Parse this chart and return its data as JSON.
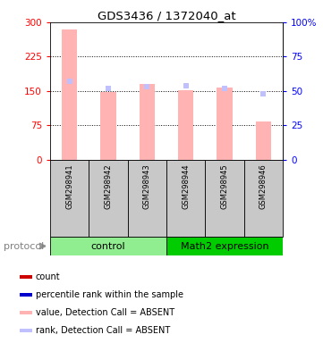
{
  "title": "GDS3436 / 1372040_at",
  "samples": [
    "GSM298941",
    "GSM298942",
    "GSM298943",
    "GSM298944",
    "GSM298945",
    "GSM298946"
  ],
  "bar_values": [
    285,
    147,
    165,
    152,
    157,
    83
  ],
  "rank_values": [
    57,
    52,
    53,
    54,
    52,
    48
  ],
  "bar_color_absent": "#FFB3B3",
  "rank_color_absent": "#C0C0FF",
  "dot_color_red": "#CC0000",
  "dot_color_blue": "#0000CC",
  "ylim_left": [
    0,
    300
  ],
  "ylim_right": [
    0,
    100
  ],
  "yticks_left": [
    0,
    75,
    150,
    225,
    300
  ],
  "ytick_labels_left": [
    "0",
    "75",
    "150",
    "225",
    "300"
  ],
  "yticks_right": [
    0,
    25,
    50,
    75,
    100
  ],
  "ytick_labels_right": [
    "0",
    "25",
    "50",
    "75",
    "100%"
  ],
  "group_light": "#90EE90",
  "group_dark": "#00CC00",
  "label_bg_color": "#C8C8C8",
  "legend_labels": [
    "count",
    "percentile rank within the sample",
    "value, Detection Call = ABSENT",
    "rank, Detection Call = ABSENT"
  ],
  "legend_colors": [
    "#CC0000",
    "#0000CC",
    "#FFB3B3",
    "#C0C0FF"
  ]
}
